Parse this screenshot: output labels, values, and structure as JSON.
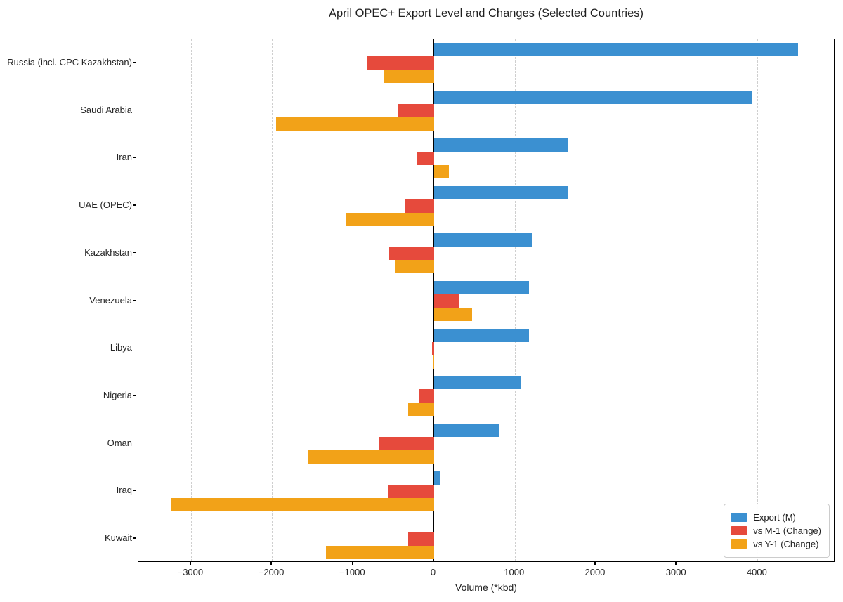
{
  "title": "April OPEC+ Export Level and Changes (Selected Countries)",
  "colors": {
    "export": "#3b90d1",
    "vs_m1": "#e64a3c",
    "vs_y1": "#f2a218",
    "gridline": "#cfcfcf",
    "spine": "#000000"
  },
  "chart_data": {
    "type": "bar",
    "orientation": "horizontal",
    "title": "April OPEC+ Export Level and Changes (Selected Countries)",
    "xlabel": "Volume (*kbd)",
    "categories": [
      "Russia (incl. CPC Kazakhstan)",
      "Saudi Arabia",
      "Iran",
      "UAE (OPEC)",
      "Kazakhstan",
      "Venezuela",
      "Libya",
      "Nigeria",
      "Oman",
      "Iraq",
      "Kuwait"
    ],
    "series": [
      {
        "name": "Export (M)",
        "color": "#3b90d1",
        "values": [
          4500,
          3940,
          1650,
          1660,
          1210,
          1180,
          1180,
          1080,
          810,
          80,
          0
        ]
      },
      {
        "name": "vs M-1 (Change)",
        "color": "#e64a3c",
        "values": [
          -820,
          -450,
          -210,
          -360,
          -550,
          320,
          -25,
          -180,
          -680,
          -560,
          -320
        ]
      },
      {
        "name": "vs Y-1 (Change)",
        "color": "#f2a218",
        "values": [
          -620,
          -1950,
          190,
          -1080,
          -480,
          470,
          -10,
          -320,
          -1550,
          -3250,
          -1330
        ]
      }
    ],
    "xlim": [
      -3650,
      4960
    ],
    "xticks": [
      -3000,
      -2000,
      -1000,
      0,
      1000,
      2000,
      3000,
      4000
    ],
    "xtick_labels": [
      "−3000",
      "−2000",
      "−1000",
      "0",
      "1000",
      "2000",
      "3000",
      "4000"
    ],
    "grid": true,
    "legend_position": "lower right"
  }
}
